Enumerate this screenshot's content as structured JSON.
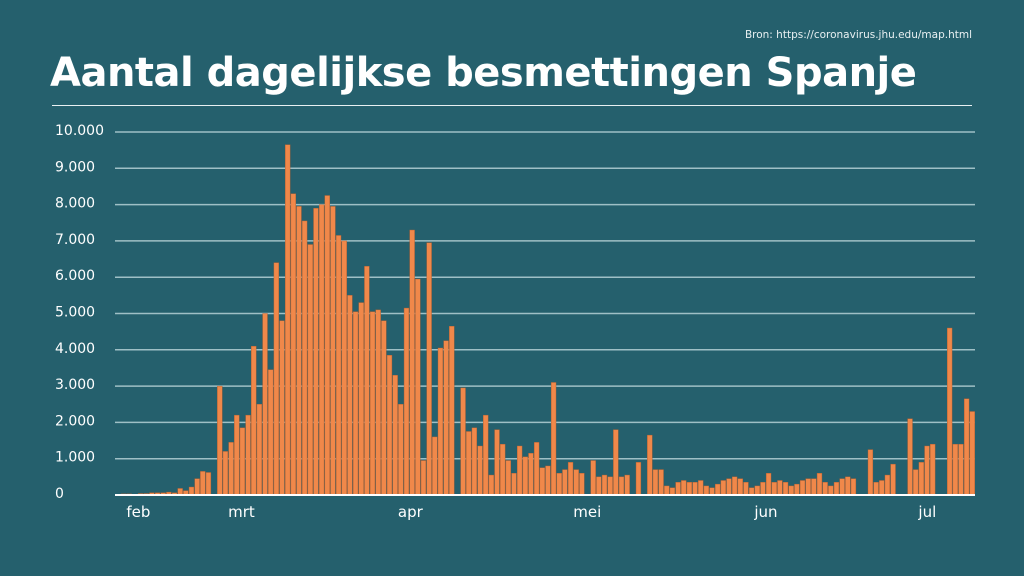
{
  "source": "Bron: https://coronavirus.jhu.edu/map.html",
  "chart_data": {
    "type": "bar",
    "title": "Aantal dagelijkse besmettingen Spanje",
    "xlabel": "",
    "ylabel": "",
    "ylim": [
      0,
      10000
    ],
    "grid": true,
    "colors": {
      "background": "#25606d",
      "bar": "#f0884a",
      "grid": "#9fc0c6"
    },
    "yticks": [
      {
        "value": 0,
        "label": "0"
      },
      {
        "value": 1000,
        "label": "1.000"
      },
      {
        "value": 2000,
        "label": "2.000"
      },
      {
        "value": 3000,
        "label": "3.000"
      },
      {
        "value": 4000,
        "label": "4.000"
      },
      {
        "value": 5000,
        "label": "5.000"
      },
      {
        "value": 6000,
        "label": "6.000"
      },
      {
        "value": 7000,
        "label": "7.000"
      },
      {
        "value": 8000,
        "label": "8.000"
      },
      {
        "value": 9000,
        "label": "9.000"
      },
      {
        "value": 10000,
        "label": "10.000"
      }
    ],
    "month_ticks": [
      {
        "label": "feb",
        "day_index": 2
      },
      {
        "label": "mrt",
        "day_index": 20
      },
      {
        "label": "apr",
        "day_index": 50
      },
      {
        "label": "mei",
        "day_index": 81
      },
      {
        "label": "jun",
        "day_index": 113
      },
      {
        "label": "jul",
        "day_index": 142
      }
    ],
    "values": [
      0,
      30,
      30,
      0,
      40,
      40,
      60,
      60,
      60,
      80,
      60,
      180,
      120,
      220,
      450,
      650,
      620,
      0,
      3000,
      1200,
      1450,
      2200,
      1850,
      2200,
      4100,
      2500,
      5000,
      3450,
      6400,
      4800,
      9650,
      8300,
      7950,
      7550,
      6900,
      7900,
      8000,
      8250,
      7950,
      7150,
      7000,
      5500,
      5050,
      5300,
      6300,
      5050,
      5100,
      4800,
      3850,
      3300,
      2500,
      5150,
      7300,
      5950,
      950,
      6950,
      1600,
      4050,
      4250,
      4650,
      0,
      2950,
      1750,
      1850,
      1350,
      2200,
      550,
      1800,
      1400,
      950,
      600,
      1350,
      1050,
      1150,
      1450,
      750,
      800,
      3100,
      600,
      700,
      900,
      700,
      600,
      0,
      950,
      500,
      550,
      500,
      1800,
      500,
      550,
      0,
      900,
      0,
      1650,
      700,
      700,
      250,
      200,
      350,
      400,
      350,
      350,
      400,
      250,
      200,
      300,
      400,
      450,
      500,
      450,
      350,
      200,
      250,
      350,
      600,
      350,
      400,
      350,
      250,
      300,
      400,
      450,
      450,
      600,
      350,
      250,
      350,
      450,
      500,
      450,
      0,
      0,
      1250,
      350,
      400,
      550,
      850,
      0,
      0,
      2100,
      700,
      900,
      1350,
      1400,
      0,
      0,
      4600,
      1400,
      1400,
      2650,
      2300
    ]
  }
}
